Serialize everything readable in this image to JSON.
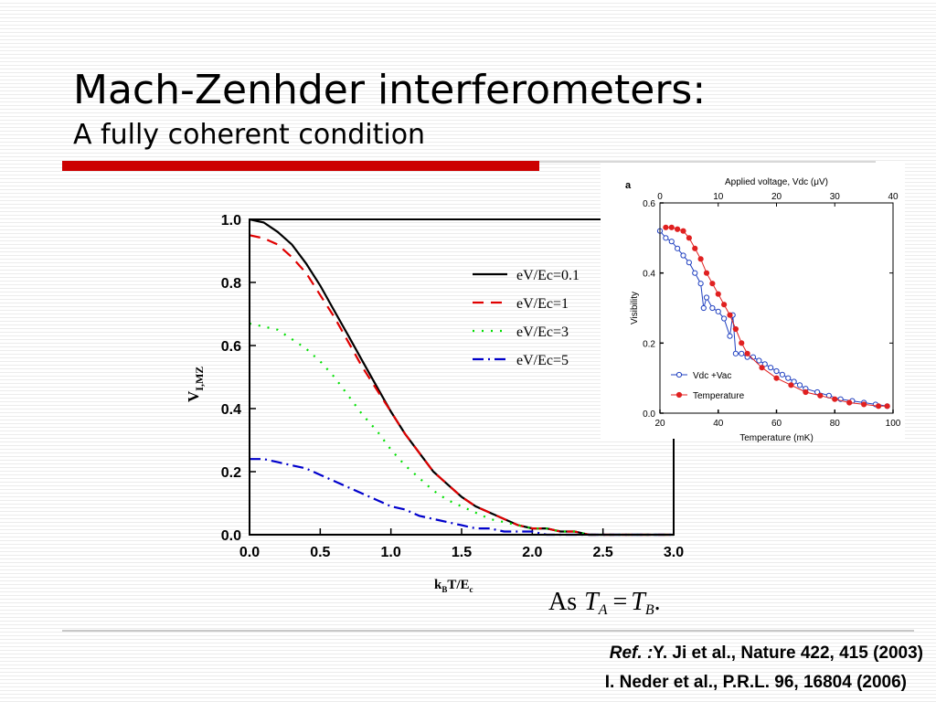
{
  "slide": {
    "title": "Mach-Zenhder interferometers:",
    "subtitle": "A fully coherent condition",
    "formula": {
      "prefix": "As",
      "lhs": "T",
      "lhs_sub": "A",
      "eq": "=",
      "rhs": "T",
      "rhs_sub": "B",
      "end": "."
    },
    "refs": [
      {
        "lead": "Ref. :",
        "text": "Y. Ji et al., Nature 422, 415 (2003)"
      },
      {
        "text": "I. Neder et al., P.R.L. 96, 16804 (2006)"
      }
    ]
  },
  "chart_data": [
    {
      "type": "line",
      "xlabel": {
        "k": "k",
        "k_sub": "B",
        "mid": "T/E",
        "c_sub": "c"
      },
      "ylabel": {
        "main": "V",
        "sub": "I,MZ"
      },
      "xlim": [
        0,
        3
      ],
      "ylim": [
        0,
        1
      ],
      "xticks": [
        {
          "value": 0,
          "label": "0.0"
        },
        0.5,
        {
          "value": 1,
          "label": "1.0"
        },
        1.5,
        {
          "value": 2,
          "label": "2.0"
        },
        2.5,
        {
          "value": 3,
          "label": "3.0"
        }
      ],
      "yticks": [
        {
          "value": 0,
          "label": "0.0"
        },
        0.2,
        0.4,
        0.6,
        0.8,
        {
          "value": 1,
          "label": "1.0"
        }
      ],
      "legend": "upper right",
      "x": [
        0,
        0.1,
        0.2,
        0.3,
        0.4,
        0.5,
        0.6,
        0.7,
        0.8,
        0.9,
        1.0,
        1.1,
        1.2,
        1.3,
        1.4,
        1.5,
        1.6,
        1.7,
        1.8,
        1.9,
        2.0,
        2.1,
        2.2,
        2.3,
        2.4,
        2.5,
        2.6,
        2.7,
        2.8,
        2.9,
        3.0
      ],
      "series": [
        {
          "name": "eV/Ec=0.1",
          "color": "#000000",
          "style": "solid",
          "values": [
            1.0,
            0.99,
            0.96,
            0.92,
            0.86,
            0.79,
            0.71,
            0.63,
            0.55,
            0.47,
            0.39,
            0.32,
            0.26,
            0.2,
            0.16,
            0.12,
            0.09,
            0.07,
            0.05,
            0.03,
            0.02,
            0.02,
            0.01,
            0.01,
            0,
            0,
            0,
            0,
            0,
            0,
            0
          ]
        },
        {
          "name": "eV/Ec=1",
          "color": "#e00000",
          "style": "dashed",
          "values": [
            0.95,
            0.94,
            0.92,
            0.88,
            0.83,
            0.76,
            0.69,
            0.61,
            0.53,
            0.46,
            0.39,
            0.32,
            0.26,
            0.2,
            0.16,
            0.12,
            0.09,
            0.07,
            0.05,
            0.03,
            0.02,
            0.02,
            0.01,
            0.01,
            0,
            0,
            0,
            0,
            0,
            0,
            0
          ]
        },
        {
          "name": "eV/Ec=3",
          "color": "#00e000",
          "style": "dotted",
          "values": [
            0.67,
            0.66,
            0.65,
            0.62,
            0.59,
            0.55,
            0.5,
            0.44,
            0.38,
            0.33,
            0.27,
            0.22,
            0.18,
            0.14,
            0.11,
            0.09,
            0.07,
            0.05,
            0.04,
            0.03,
            0.02,
            0.02,
            0.01,
            0.01,
            0,
            0,
            0,
            0,
            0,
            0,
            0
          ]
        },
        {
          "name": "eV/Ec=5",
          "color": "#0000cc",
          "style": "dashdot",
          "values": [
            0.24,
            0.24,
            0.23,
            0.22,
            0.21,
            0.19,
            0.17,
            0.15,
            0.13,
            0.11,
            0.09,
            0.08,
            0.06,
            0.05,
            0.04,
            0.03,
            0.02,
            0.02,
            0.01,
            0.01,
            0.01,
            0,
            0,
            0,
            0,
            0,
            0,
            0,
            0,
            0,
            0
          ]
        }
      ]
    },
    {
      "type": "line",
      "panel_label": "a",
      "xlabel": "Temperature (mK)",
      "ylabel": "Visibility",
      "x2label": "Applied voltage, Vdc (μV)",
      "xlim": [
        20,
        100
      ],
      "ylim": [
        0,
        0.6
      ],
      "x2lim": [
        0,
        40
      ],
      "xticks": [
        20,
        40,
        60,
        80,
        100
      ],
      "yticks": [
        {
          "value": 0,
          "label": "0.0"
        },
        0.2,
        0.4,
        0.6
      ],
      "x2ticks": [
        0,
        10,
        20,
        30,
        40
      ],
      "legend": "lower left",
      "series": [
        {
          "name": "Vdc +Vac",
          "color": "#2040c0",
          "marker": "open",
          "x": [
            20,
            22,
            24,
            26,
            28,
            30,
            32,
            34,
            35,
            36,
            38,
            40,
            42,
            44,
            45,
            46,
            48,
            50,
            52,
            54,
            56,
            58,
            60,
            62,
            64,
            66,
            68,
            70,
            74,
            78,
            82,
            86,
            90,
            94,
            98
          ],
          "values": [
            0.52,
            0.5,
            0.49,
            0.47,
            0.45,
            0.43,
            0.4,
            0.37,
            0.3,
            0.33,
            0.3,
            0.29,
            0.27,
            0.22,
            0.28,
            0.17,
            0.17,
            0.16,
            0.16,
            0.15,
            0.14,
            0.13,
            0.12,
            0.11,
            0.1,
            0.09,
            0.08,
            0.07,
            0.06,
            0.05,
            0.04,
            0.035,
            0.03,
            0.025,
            0.02
          ]
        },
        {
          "name": "Temperature",
          "color": "#e02020",
          "marker": "filled",
          "x": [
            22,
            24,
            26,
            28,
            30,
            32,
            34,
            36,
            38,
            40,
            42,
            44,
            46,
            48,
            50,
            55,
            60,
            65,
            70,
            75,
            80,
            85,
            90,
            95,
            98
          ],
          "values": [
            0.53,
            0.53,
            0.525,
            0.52,
            0.5,
            0.47,
            0.44,
            0.4,
            0.37,
            0.34,
            0.31,
            0.28,
            0.24,
            0.2,
            0.17,
            0.13,
            0.1,
            0.08,
            0.06,
            0.05,
            0.04,
            0.03,
            0.025,
            0.02,
            0.02
          ]
        }
      ]
    }
  ]
}
